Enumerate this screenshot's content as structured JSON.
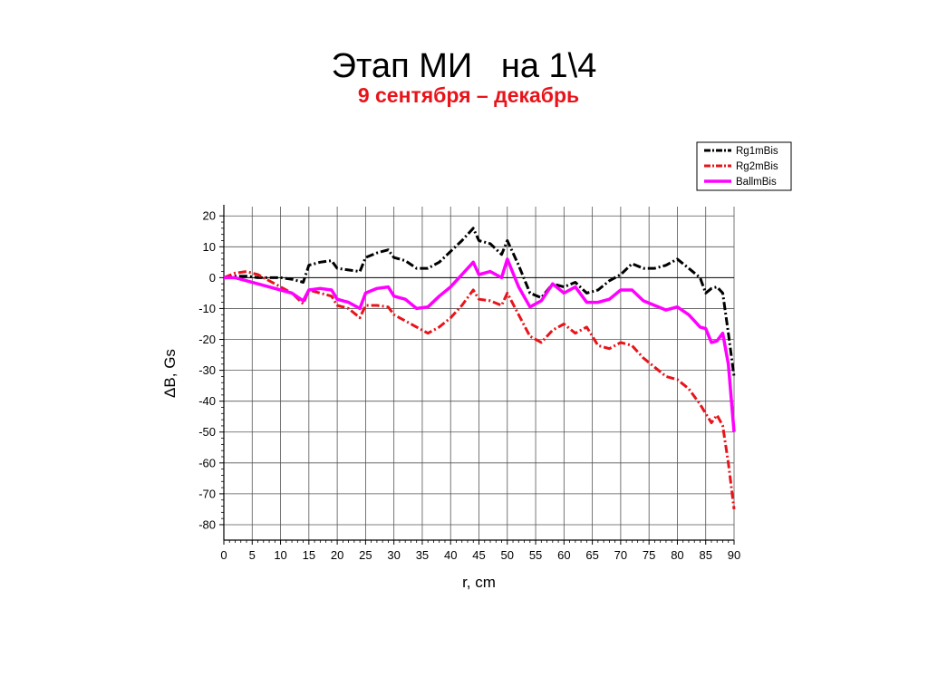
{
  "page": {
    "title": "Этап МИ   на 1\\4",
    "subtitle": "9 сентября – декабрь"
  },
  "chart_data": {
    "type": "line",
    "xlabel": "r, cm",
    "ylabel": "ΔB, Gs",
    "xlim": [
      0,
      90
    ],
    "ylim": [
      -85,
      23
    ],
    "xticks": [
      0,
      5,
      10,
      15,
      20,
      25,
      30,
      35,
      40,
      45,
      50,
      55,
      60,
      65,
      70,
      75,
      80,
      85,
      90
    ],
    "yticks": [
      20,
      10,
      0,
      -10,
      -20,
      -30,
      -40,
      -50,
      -60,
      -70,
      -80
    ],
    "grid": true,
    "legend_position": "top-right, outside plot",
    "series": [
      {
        "name": "Rg1mBis",
        "color": "#000000",
        "style": "dash-dot",
        "x": [
          0,
          2,
          4,
          6,
          8,
          10,
          12,
          14,
          15,
          17,
          19,
          20,
          22,
          24,
          25,
          27,
          29,
          30,
          32,
          34,
          36,
          38,
          40,
          42,
          44,
          45,
          47,
          49,
          50,
          52,
          54,
          56,
          58,
          60,
          62,
          64,
          66,
          68,
          70,
          72,
          74,
          76,
          78,
          80,
          82,
          84,
          85,
          86,
          87,
          88,
          89,
          90
        ],
        "y": [
          0,
          0.5,
          0.5,
          0,
          0,
          0,
          -0.5,
          -1.5,
          4,
          5,
          5.5,
          3,
          2.5,
          2,
          6.5,
          8,
          9,
          6.5,
          5.5,
          3,
          3,
          5,
          8.5,
          12,
          16,
          12,
          11,
          7.5,
          12,
          4,
          -5,
          -6.5,
          -2,
          -3,
          -1.5,
          -5,
          -4,
          -1,
          1,
          4.5,
          3,
          3,
          4,
          6,
          3,
          0,
          -5,
          -3.5,
          -3,
          -5,
          -18,
          -32
        ]
      },
      {
        "name": "Rg2mBis",
        "color": "#e8141a",
        "style": "dash-dot",
        "x": [
          0,
          2,
          4,
          6,
          8,
          10,
          12,
          14,
          15,
          17,
          19,
          20,
          22,
          24,
          25,
          27,
          29,
          30,
          32,
          34,
          36,
          38,
          40,
          42,
          44,
          45,
          47,
          49,
          50,
          52,
          54,
          56,
          58,
          60,
          62,
          64,
          66,
          68,
          70,
          72,
          74,
          76,
          78,
          80,
          82,
          84,
          85,
          86,
          87,
          88,
          89,
          90
        ],
        "y": [
          0,
          1.5,
          2,
          1,
          -1,
          -3,
          -5,
          -8.5,
          -4,
          -5,
          -6,
          -9,
          -10,
          -13,
          -9,
          -9,
          -9.5,
          -12,
          -14,
          -16,
          -18,
          -16,
          -13,
          -9,
          -4,
          -7,
          -7.5,
          -9,
          -5,
          -12,
          -19,
          -21,
          -17,
          -15,
          -18,
          -16,
          -22,
          -23,
          -21,
          -22,
          -26,
          -29,
          -32,
          -33,
          -36,
          -41,
          -44,
          -47,
          -44.5,
          -48,
          -60,
          -75
        ]
      },
      {
        "name": "BallmBis",
        "color": "#ff00ff",
        "style": "solid",
        "x": [
          0,
          2,
          4,
          6,
          8,
          10,
          12,
          14,
          15,
          17,
          19,
          20,
          22,
          24,
          25,
          27,
          29,
          30,
          32,
          34,
          36,
          38,
          40,
          42,
          44,
          45,
          47,
          49,
          50,
          52,
          54,
          56,
          58,
          60,
          62,
          64,
          66,
          68,
          70,
          72,
          74,
          76,
          78,
          80,
          82,
          84,
          85,
          86,
          87,
          88,
          89,
          90
        ],
        "y": [
          0,
          0,
          -1,
          -2,
          -3,
          -4,
          -5,
          -7.5,
          -4,
          -3.5,
          -4,
          -7,
          -8,
          -10,
          -5,
          -3.5,
          -3,
          -6,
          -7,
          -10,
          -9.5,
          -6,
          -3,
          1,
          5,
          1,
          2,
          0,
          6,
          -3,
          -9.5,
          -7.5,
          -2,
          -5,
          -3,
          -8,
          -8,
          -7,
          -4,
          -4,
          -7.5,
          -9,
          -10.5,
          -9.5,
          -12,
          -16,
          -16.5,
          -21,
          -20.5,
          -18,
          -28,
          -50
        ]
      }
    ]
  }
}
